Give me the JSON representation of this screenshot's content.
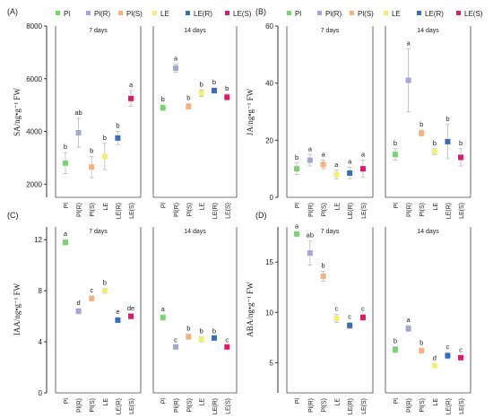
{
  "legend": {
    "items": [
      {
        "label": "Pl",
        "color": "#77d66b"
      },
      {
        "label": "Pl(R)",
        "color": "#a7a5d5"
      },
      {
        "label": "Pl(S)",
        "color": "#f6b27d"
      },
      {
        "label": "LE",
        "color": "#f3ef72"
      },
      {
        "label": "LE(R)",
        "color": "#3a6db5"
      },
      {
        "label": "LE(S)",
        "color": "#e3186b"
      }
    ]
  },
  "chart_data": [
    {
      "type": "scatter",
      "panel_label": "(A)",
      "ylabel": "SA/ng•g⁻¹ FW",
      "ylim": [
        1500,
        8000
      ],
      "yticks": [
        2000,
        4000,
        6000,
        8000
      ],
      "groups": [
        {
          "label": "7 days",
          "categories": [
            "Pl",
            "Pl(R)",
            "Pl(S)",
            "LE",
            "LE(R)",
            "LE(S)"
          ],
          "values": [
            2800,
            3950,
            2650,
            3050,
            3750,
            5250
          ],
          "errors": [
            400,
            550,
            400,
            500,
            250,
            300
          ],
          "letters": [
            "b",
            "ab",
            "b",
            "b",
            "b",
            "a"
          ]
        },
        {
          "label": "14 days",
          "categories": [
            "Pl",
            "Pl(R)",
            "Pl(S)",
            "LE",
            "LE(R)",
            "LE(S)"
          ],
          "values": [
            4900,
            6400,
            4950,
            5450,
            5550,
            5300
          ],
          "errors": [
            100,
            150,
            100,
            120,
            100,
            120
          ],
          "letters": [
            "b",
            "a",
            "b",
            "b",
            "b",
            "b"
          ]
        }
      ]
    },
    {
      "type": "scatter",
      "panel_label": "(B)",
      "ylabel": "JA/ng•g⁻¹ FW",
      "ylim": [
        0,
        60
      ],
      "yticks": [
        0,
        20,
        40,
        60
      ],
      "groups": [
        {
          "label": "7 days",
          "categories": [
            "Pl",
            "Pl(R)",
            "Pl(S)",
            "LE",
            "LE(R)",
            "LE(S)"
          ],
          "values": [
            10,
            13,
            11.5,
            8,
            8.5,
            10
          ],
          "errors": [
            2,
            2,
            1.5,
            1.5,
            2,
            3
          ],
          "letters": [
            "b",
            "a",
            "a",
            "a",
            "a",
            "a"
          ]
        },
        {
          "label": "14 days",
          "categories": [
            "Pl",
            "Pl(R)",
            "Pl(S)",
            "LE",
            "LE(R)",
            "LE(S)"
          ],
          "values": [
            15,
            41,
            22.5,
            16,
            19.5,
            14
          ],
          "errors": [
            2,
            11,
            1,
            1,
            6,
            3
          ],
          "letters": [
            "b",
            "a",
            "b",
            "b",
            "b",
            "b"
          ]
        }
      ]
    },
    {
      "type": "scatter",
      "panel_label": "(C)",
      "ylabel": "IAA/ng•g⁻¹ FW",
      "ylim": [
        0,
        13
      ],
      "yticks": [
        0,
        4,
        8,
        12
      ],
      "groups": [
        {
          "label": "7 days",
          "categories": [
            "Pl",
            "Pl(R)",
            "Pl(S)",
            "LE",
            "LE(R)",
            "LE(S)"
          ],
          "values": [
            11.8,
            6.4,
            7.4,
            8.0,
            5.7,
            6.0
          ],
          "errors": [
            0.2,
            0.2,
            0.2,
            0.2,
            0.2,
            0.2
          ],
          "letters": [
            "a",
            "d",
            "c",
            "b",
            "e",
            "de"
          ]
        },
        {
          "label": "14 days",
          "categories": [
            "Pl",
            "Pl(R)",
            "Pl(S)",
            "LE",
            "LE(R)",
            "LE(S)"
          ],
          "values": [
            5.9,
            3.6,
            4.4,
            4.2,
            4.3,
            3.6
          ],
          "errors": [
            0.2,
            0.1,
            0.2,
            0.2,
            0.1,
            0.1
          ],
          "letters": [
            "a",
            "c",
            "b",
            "b",
            "b",
            "c"
          ]
        }
      ]
    },
    {
      "type": "scatter",
      "panel_label": "(D)",
      "ylabel": "ABA/ng•g⁻¹ FW",
      "ylim": [
        2,
        18.5
      ],
      "yticks": [
        5,
        10,
        15
      ],
      "groups": [
        {
          "label": "7 days",
          "categories": [
            "Pl",
            "Pl(R)",
            "Pl(S)",
            "LE",
            "LE(R)",
            "LE(S)"
          ],
          "values": [
            17.8,
            15.9,
            13.6,
            9.4,
            8.7,
            9.5
          ],
          "errors": [
            0.2,
            1.2,
            0.5,
            0.4,
            0.3,
            0.3
          ],
          "letters": [
            "a",
            "ab",
            "b",
            "c",
            "c",
            "c"
          ]
        },
        {
          "label": "14 days",
          "categories": [
            "Pl",
            "Pl(R)",
            "Pl(S)",
            "LE",
            "LE(R)",
            "LE(S)"
          ],
          "values": [
            6.3,
            8.4,
            6.2,
            4.7,
            5.7,
            5.5
          ],
          "errors": [
            0.3,
            0.3,
            0.2,
            0.2,
            0.3,
            0.2
          ],
          "letters": [
            "b",
            "a",
            "b",
            "d",
            "c",
            "c"
          ]
        }
      ]
    }
  ]
}
